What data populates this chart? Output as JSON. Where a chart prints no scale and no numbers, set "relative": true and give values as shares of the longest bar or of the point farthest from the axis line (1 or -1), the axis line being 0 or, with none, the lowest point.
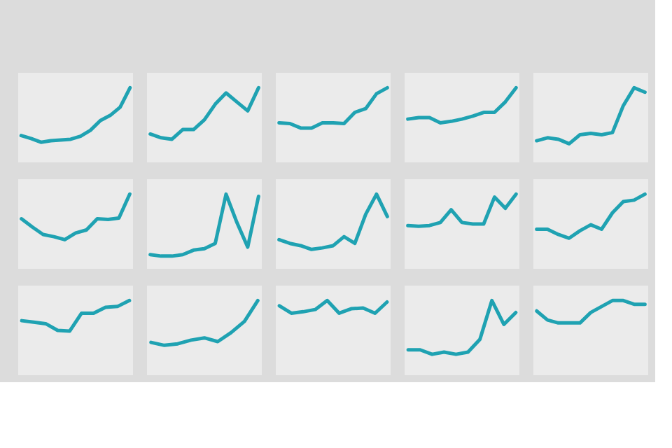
{
  "chart_data": [
    {
      "type": "line",
      "relative": true,
      "color": "#1fa2b2",
      "categories": [
        null,
        null,
        null,
        null,
        null,
        null,
        null,
        null,
        null,
        null,
        null,
        null
      ],
      "values": [
        0.36,
        0.32,
        0.27,
        0.29,
        0.3,
        0.31,
        0.35,
        0.43,
        0.56,
        0.63,
        0.74,
        1
      ]
    },
    {
      "type": "line",
      "relative": true,
      "color": "#1fa2b2",
      "categories": [
        null,
        null,
        null,
        null,
        null,
        null,
        null,
        null,
        null,
        null,
        null
      ],
      "values": [
        0.38,
        0.33,
        0.31,
        0.44,
        0.44,
        0.57,
        0.78,
        0.93,
        0.81,
        0.69,
        1
      ]
    },
    {
      "type": "line",
      "relative": true,
      "color": "#1fa2b2",
      "categories": [
        null,
        null,
        null,
        null,
        null,
        null,
        null,
        null,
        null,
        null,
        null
      ],
      "values": [
        0.53,
        0.52,
        0.46,
        0.46,
        0.53,
        0.53,
        0.52,
        0.67,
        0.72,
        0.92,
        1
      ]
    },
    {
      "type": "line",
      "relative": true,
      "color": "#1fa2b2",
      "categories": [
        null,
        null,
        null,
        null,
        null,
        null,
        null,
        null,
        null,
        null,
        null
      ],
      "values": [
        0.58,
        0.6,
        0.6,
        0.53,
        0.55,
        0.58,
        0.62,
        0.67,
        0.67,
        0.81,
        1
      ]
    },
    {
      "type": "line",
      "relative": true,
      "color": "#1fa2b2",
      "categories": [
        null,
        null,
        null,
        null,
        null,
        null,
        null,
        null,
        null,
        null,
        null
      ],
      "values": [
        0.29,
        0.33,
        0.31,
        0.25,
        0.37,
        0.39,
        0.37,
        0.4,
        0.76,
        1,
        0.94
      ]
    },
    {
      "type": "line",
      "relative": true,
      "color": "#1fa2b2",
      "categories": [
        null,
        null,
        null,
        null,
        null,
        null,
        null,
        null,
        null,
        null,
        null
      ],
      "values": [
        0.67,
        0.56,
        0.46,
        0.43,
        0.39,
        0.48,
        0.52,
        0.67,
        0.66,
        0.68,
        1
      ]
    },
    {
      "type": "line",
      "relative": true,
      "color": "#1fa2b2",
      "categories": [
        null,
        null,
        null,
        null,
        null,
        null,
        null,
        null,
        null,
        null,
        null
      ],
      "values": [
        0.19,
        0.17,
        0.17,
        0.19,
        0.25,
        0.27,
        0.34,
        1,
        0.62,
        0.29,
        0.97
      ]
    },
    {
      "type": "line",
      "relative": true,
      "color": "#1fa2b2",
      "categories": [
        null,
        null,
        null,
        null,
        null,
        null,
        null,
        null,
        null,
        null,
        null
      ],
      "values": [
        0.39,
        0.34,
        0.31,
        0.26,
        0.28,
        0.31,
        0.43,
        0.34,
        0.73,
        1,
        0.7
      ]
    },
    {
      "type": "line",
      "relative": true,
      "color": "#1fa2b2",
      "categories": [
        null,
        null,
        null,
        null,
        null,
        null,
        null,
        null,
        null,
        null,
        null
      ],
      "values": [
        0.58,
        0.57,
        0.58,
        0.62,
        0.79,
        0.62,
        0.6,
        0.6,
        0.96,
        0.81,
        1
      ]
    },
    {
      "type": "line",
      "relative": true,
      "color": "#1fa2b2",
      "categories": [
        null,
        null,
        null,
        null,
        null,
        null,
        null,
        null,
        null,
        null,
        null
      ],
      "values": [
        0.53,
        0.53,
        0.46,
        0.41,
        0.51,
        0.59,
        0.53,
        0.75,
        0.9,
        0.92,
        1
      ]
    },
    {
      "type": "line",
      "relative": true,
      "color": "#1fa2b2",
      "categories": [
        null,
        null,
        null,
        null,
        null,
        null,
        null,
        null,
        null,
        null
      ],
      "values": [
        0.73,
        0.71,
        0.69,
        0.6,
        0.59,
        0.83,
        0.83,
        0.91,
        0.92,
        1
      ]
    },
    {
      "type": "line",
      "relative": true,
      "color": "#1fa2b2",
      "categories": [
        null,
        null,
        null,
        null,
        null,
        null,
        null,
        null,
        null
      ],
      "values": [
        0.44,
        0.4,
        0.42,
        0.47,
        0.5,
        0.45,
        0.57,
        0.72,
        1
      ]
    },
    {
      "type": "line",
      "relative": true,
      "color": "#1fa2b2",
      "categories": [
        null,
        null,
        null,
        null,
        null,
        null,
        null,
        null,
        null,
        null
      ],
      "values": [
        0.93,
        0.83,
        0.85,
        0.88,
        1,
        0.83,
        0.89,
        0.9,
        0.83,
        0.98
      ]
    },
    {
      "type": "line",
      "relative": true,
      "color": "#1fa2b2",
      "categories": [
        null,
        null,
        null,
        null,
        null,
        null,
        null,
        null,
        null,
        null
      ],
      "values": [
        0.34,
        0.34,
        0.28,
        0.31,
        0.28,
        0.31,
        0.48,
        1,
        0.68,
        0.84
      ]
    },
    {
      "type": "line",
      "relative": true,
      "color": "#1fa2b2",
      "categories": [
        null,
        null,
        null,
        null,
        null,
        null,
        null,
        null,
        null,
        null,
        null
      ],
      "values": [
        0.86,
        0.74,
        0.7,
        0.7,
        0.7,
        0.84,
        0.92,
        1,
        1,
        0.95,
        0.95
      ]
    }
  ]
}
